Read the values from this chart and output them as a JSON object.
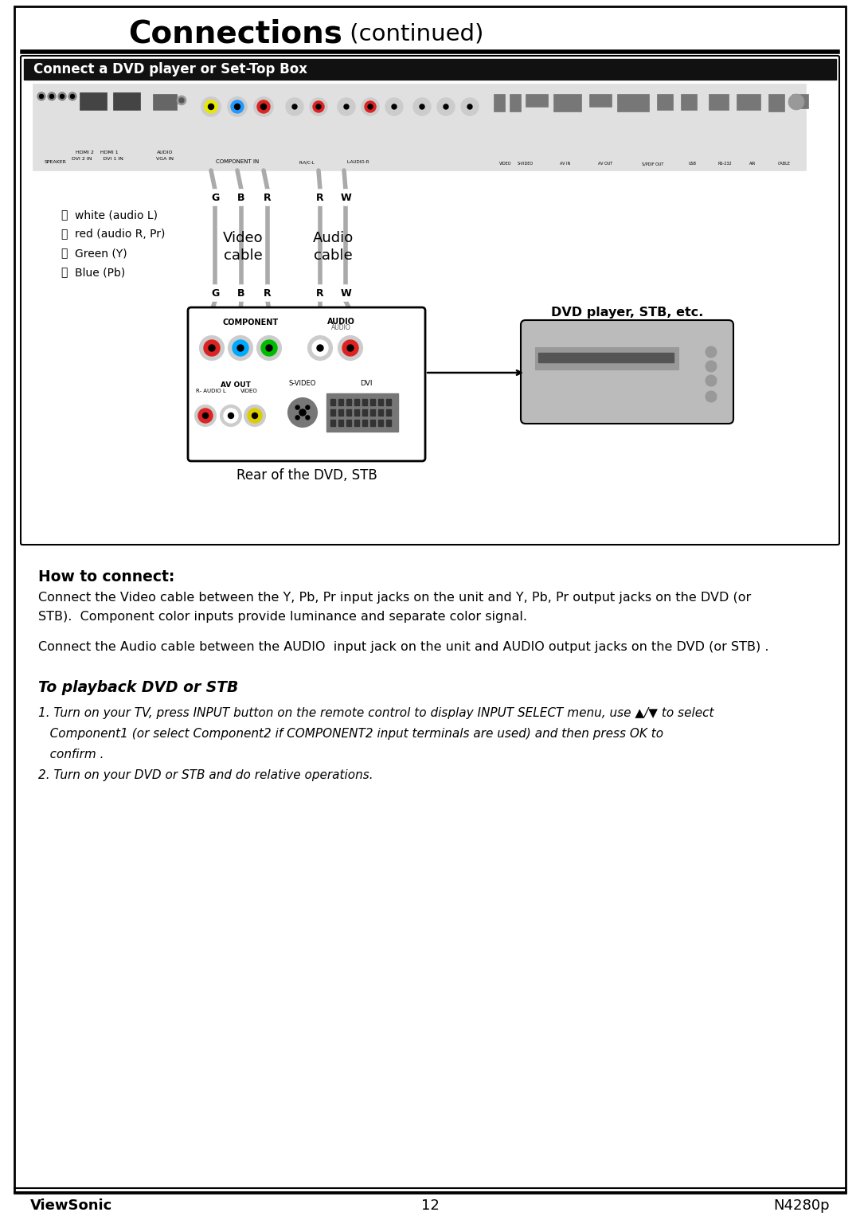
{
  "title_bold": "Connections",
  "title_normal": " (continued)",
  "section_title": "Connect a DVD player or Set-Top Box",
  "how_to_connect_title": "How to connect:",
  "how_to_connect_text1a": "Connect the Video cable between the Y, Pb, Pr input jacks on the unit and Y, Pb, Pr output jacks on the DVD (or",
  "how_to_connect_text1b": "STB).  Component color inputs provide luminance and separate color signal.",
  "how_to_connect_text2": "Connect the Audio cable between the AUDIO  input jack on the unit and AUDIO output jacks on the DVD (or STB) .",
  "playback_title": "To playback DVD or STB",
  "playback_item2": "2. Turn on your DVD or STB and do relative operations.",
  "footer_left": "ViewSonic",
  "footer_center": "12",
  "footer_right": "N4280p",
  "bg_color": "#ffffff",
  "rear_label": "Rear of the DVD, STB",
  "dvd_label": "DVD player, STB, etc.",
  "video_cable_label": "Video\ncable",
  "audio_cable_label": "Audio\ncable"
}
